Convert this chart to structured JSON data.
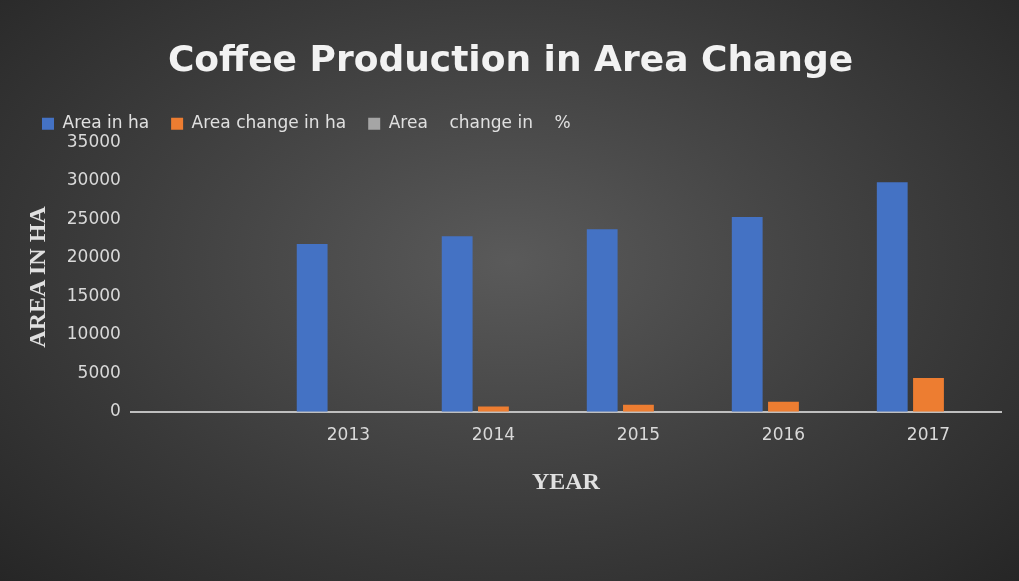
{
  "chart_data": {
    "type": "bar",
    "title": "Coffee Production in Area Change",
    "xlabel": "YEAR",
    "ylabel": "AREA IN HA",
    "categories": [
      null,
      "2013",
      "2014",
      "2015",
      "2016",
      "2017"
    ],
    "series": [
      {
        "name": "Area in ha",
        "color": "#4472c4",
        "values": [
          null,
          21800,
          22800,
          23700,
          25300,
          29800
        ]
      },
      {
        "name": "Area change in ha",
        "color": "#ed7d31",
        "values": [
          null,
          0,
          700,
          900,
          1300,
          4400
        ]
      },
      {
        "name": "Area    change in    %",
        "color": "#a5a5a5",
        "values": [
          null,
          0,
          0,
          0,
          0,
          0
        ]
      }
    ],
    "ylim": [
      0,
      35000
    ],
    "yticks": [
      0,
      5000,
      10000,
      15000,
      20000,
      25000,
      30000,
      35000
    ],
    "grid": false,
    "legend": "top left"
  }
}
